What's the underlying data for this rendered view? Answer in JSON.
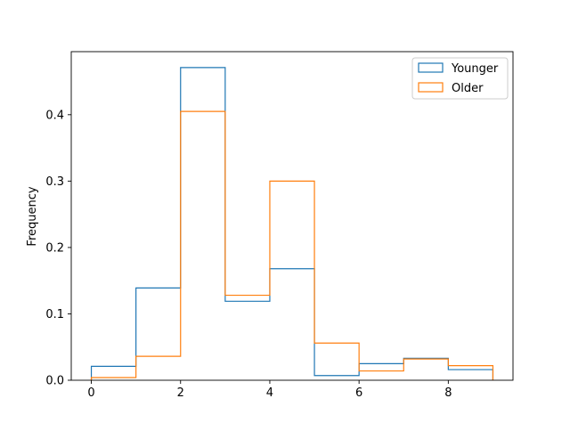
{
  "chart_data": {
    "type": "histogram",
    "title": "",
    "xlabel": "",
    "ylabel": "Frequency",
    "xlim": [
      -0.45,
      9.45
    ],
    "ylim": [
      0,
      0.495
    ],
    "xticks": [
      0,
      2,
      4,
      6,
      8
    ],
    "xtick_labels": [
      "0",
      "2",
      "4",
      "6",
      "8"
    ],
    "yticks": [
      0.0,
      0.1,
      0.2,
      0.3,
      0.4
    ],
    "ytick_labels": [
      "0.0",
      "0.1",
      "0.2",
      "0.3",
      "0.4"
    ],
    "bin_edges": [
      0,
      1,
      2,
      3,
      4,
      5,
      6,
      7,
      8,
      9
    ],
    "series": [
      {
        "name": "Younger",
        "color": "#1f77b4",
        "values": [
          0.021,
          0.139,
          0.471,
          0.119,
          0.168,
          0.007,
          0.025,
          0.033,
          0.016
        ]
      },
      {
        "name": "Older",
        "color": "#ff7f0e",
        "values": [
          0.004,
          0.036,
          0.405,
          0.128,
          0.3,
          0.056,
          0.014,
          0.032,
          0.022
        ]
      }
    ],
    "legend_position": "top-right",
    "grid": false
  }
}
